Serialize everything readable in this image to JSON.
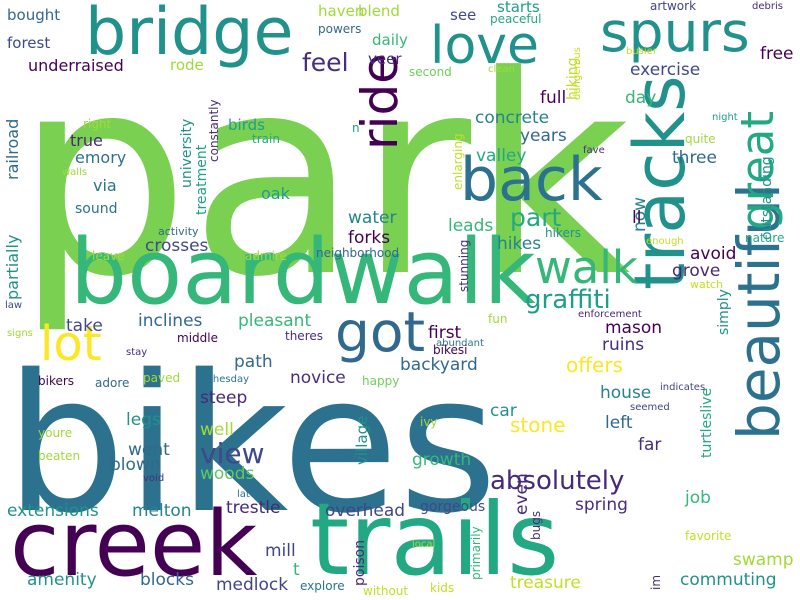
{
  "palette": [
    "#7ad151",
    "#23a884",
    "#2c728e",
    "#440154",
    "#3b528b",
    "#fde725",
    "#35b779",
    "#21918c",
    "#a0da39",
    "#472d7b",
    "#5ec962",
    "#31688e",
    "#482878",
    "#1f9e89",
    "#c2df23",
    "#414487",
    "#26828e",
    "#6ece58",
    "#3e4989"
  ],
  "words": [
    {
      "text": "park",
      "color": "#7ad151"
    },
    {
      "text": "bikes",
      "color": "#2c728e"
    },
    {
      "text": "trails",
      "color": "#23a884"
    },
    {
      "text": "creek",
      "color": "#440154"
    },
    {
      "text": "boardwalk",
      "color": "#35b779"
    },
    {
      "text": "bridge",
      "color": "#21918c"
    },
    {
      "text": "tracks",
      "color": "#21918c"
    },
    {
      "text": "beautiful",
      "color": "#2c728e"
    },
    {
      "text": "back",
      "color": "#2c728e"
    },
    {
      "text": "spurs",
      "color": "#21918c"
    },
    {
      "text": "love",
      "color": "#21918c"
    },
    {
      "text": "walk",
      "color": "#35b779"
    },
    {
      "text": "ride",
      "color": "#440154"
    },
    {
      "text": "great",
      "color": "#23a884"
    },
    {
      "text": "got",
      "color": "#31688e"
    },
    {
      "text": "lot",
      "color": "#fde725"
    },
    {
      "text": "absolutely",
      "color": "#482878"
    },
    {
      "text": "graffiti",
      "color": "#1f9e89"
    },
    {
      "text": "part",
      "color": "#23a884"
    },
    {
      "text": "feel",
      "color": "#472d7b"
    },
    {
      "text": "view",
      "color": "#3e4989"
    },
    {
      "text": "offers",
      "color": "#fde725"
    },
    {
      "text": "stone",
      "color": "#fde725"
    },
    {
      "text": "treasure",
      "color": "#c2df23"
    },
    {
      "text": "full",
      "color": "#440154"
    },
    {
      "text": "day",
      "color": "#35b779"
    },
    {
      "text": "avoid",
      "color": "#440154"
    },
    {
      "text": "ruins",
      "color": "#472d7b"
    },
    {
      "text": "mason",
      "color": "#440154"
    },
    {
      "text": "house",
      "color": "#26828e"
    },
    {
      "text": "backyard",
      "color": "#31688e"
    },
    {
      "text": "novice",
      "color": "#472d7b"
    },
    {
      "text": "pleasant",
      "color": "#35b779"
    },
    {
      "text": "inclines",
      "color": "#31688e"
    },
    {
      "text": "take",
      "color": "#3e4989"
    },
    {
      "text": "crosses",
      "color": "#3e4989"
    },
    {
      "text": "hikes",
      "color": "#26828e"
    },
    {
      "text": "forks",
      "color": "#440154"
    },
    {
      "text": "water",
      "color": "#26828e"
    },
    {
      "text": "leads",
      "color": "#35b779"
    },
    {
      "text": "concrete",
      "color": "#26828e"
    },
    {
      "text": "years",
      "color": "#31688e"
    },
    {
      "text": "valley",
      "color": "#23a884"
    },
    {
      "text": "three",
      "color": "#31688e"
    },
    {
      "text": "exercise",
      "color": "#3e4989"
    },
    {
      "text": "free",
      "color": "#440154"
    },
    {
      "text": "grove",
      "color": "#482878"
    },
    {
      "text": "now",
      "color": "#26828e"
    },
    {
      "text": "ll",
      "color": "#440154"
    },
    {
      "text": "first",
      "color": "#440154"
    },
    {
      "text": "path",
      "color": "#31688e"
    },
    {
      "text": "steep",
      "color": "#482878"
    },
    {
      "text": "well",
      "color": "#a0da39"
    },
    {
      "text": "went",
      "color": "#31688e"
    },
    {
      "text": "blown",
      "color": "#31688e"
    },
    {
      "text": "woods",
      "color": "#5ec962"
    },
    {
      "text": "legs",
      "color": "#21918c"
    },
    {
      "text": "car",
      "color": "#21918c"
    },
    {
      "text": "left",
      "color": "#31688e"
    },
    {
      "text": "far",
      "color": "#472d7b"
    },
    {
      "text": "growth",
      "color": "#35b779"
    },
    {
      "text": "spring",
      "color": "#472d7b"
    },
    {
      "text": "job",
      "color": "#35b779"
    },
    {
      "text": "swamp",
      "color": "#a0da39"
    },
    {
      "text": "commuting",
      "color": "#21918c"
    },
    {
      "text": "trestle",
      "color": "#482878"
    },
    {
      "text": "melton",
      "color": "#26828e"
    },
    {
      "text": "extensions",
      "color": "#21918c"
    },
    {
      "text": "overhead",
      "color": "#414487"
    },
    {
      "text": "gorgeous",
      "color": "#3e4989"
    },
    {
      "text": "even",
      "color": "#482878"
    },
    {
      "text": "favorite",
      "color": "#c2df23"
    },
    {
      "text": "mill",
      "color": "#414487"
    },
    {
      "text": "blocks",
      "color": "#31688e"
    },
    {
      "text": "medlock",
      "color": "#414487"
    },
    {
      "text": "amenity",
      "color": "#21918c"
    },
    {
      "text": "t",
      "color": "#35b779"
    },
    {
      "text": "haven",
      "color": "#a0da39"
    },
    {
      "text": "blend",
      "color": "#a0da39"
    },
    {
      "text": "see",
      "color": "#3e4989"
    },
    {
      "text": "starts",
      "color": "#1f9e89"
    },
    {
      "text": "daily",
      "color": "#35b779"
    },
    {
      "text": "veer",
      "color": "#472d7b"
    },
    {
      "text": "forest",
      "color": "#3e4989"
    },
    {
      "text": "bought",
      "color": "#31688e"
    },
    {
      "text": "underraised",
      "color": "#440154"
    },
    {
      "text": "rode",
      "color": "#a0da39"
    },
    {
      "text": "powers",
      "color": "#31688e"
    },
    {
      "text": "hiking",
      "color": "#c2df23"
    },
    {
      "text": "second",
      "color": "#6ece58"
    },
    {
      "text": "clean",
      "color": "#a0da39"
    },
    {
      "text": "peaceful",
      "color": "#23a884"
    },
    {
      "text": "dangerous",
      "color": "#c2df23"
    },
    {
      "text": "busier",
      "color": "#c2df23"
    },
    {
      "text": "artwork",
      "color": "#414487"
    },
    {
      "text": "debris",
      "color": "#482878"
    },
    {
      "text": "night",
      "color": "#1f9e89"
    },
    {
      "text": "quite",
      "color": "#a0da39"
    },
    {
      "text": "fave",
      "color": "#472d7b"
    },
    {
      "text": "outstanding",
      "color": "#21918c"
    },
    {
      "text": "nature",
      "color": "#23a884"
    },
    {
      "text": "enough",
      "color": "#c2df23"
    },
    {
      "text": "watch",
      "color": "#c2df23"
    },
    {
      "text": "railroad",
      "color": "#31688e"
    },
    {
      "text": "partially",
      "color": "#21918c"
    },
    {
      "text": "right",
      "color": "#a0da39"
    },
    {
      "text": "emory",
      "color": "#2c728e"
    },
    {
      "text": "true",
      "color": "#482878"
    },
    {
      "text": "via",
      "color": "#2c728e"
    },
    {
      "text": "sound",
      "color": "#2c728e"
    },
    {
      "text": "walls",
      "color": "#a0da39"
    },
    {
      "text": "university",
      "color": "#21918c"
    },
    {
      "text": "treatment",
      "color": "#1f9e89"
    },
    {
      "text": "constantly",
      "color": "#472d7b"
    },
    {
      "text": "birds",
      "color": "#1f9e89"
    },
    {
      "text": "train",
      "color": "#23a884"
    },
    {
      "text": "oak",
      "color": "#1f9e89"
    },
    {
      "text": "n",
      "color": "#1f9e89"
    },
    {
      "text": "enlarging",
      "color": "#c2df23"
    },
    {
      "text": "stunning",
      "color": "#472d7b"
    },
    {
      "text": "hikers",
      "color": "#21918c"
    },
    {
      "text": "activity",
      "color": "#31688e"
    },
    {
      "text": "leave",
      "color": "#a0da39"
    },
    {
      "text": "admire",
      "color": "#a0da39"
    },
    {
      "text": "neighborhood",
      "color": "#31688e"
    },
    {
      "text": "law",
      "color": "#3e4989"
    },
    {
      "text": "signs",
      "color": "#a0da39"
    },
    {
      "text": "middle",
      "color": "#440154"
    },
    {
      "text": "theres",
      "color": "#472d7b"
    },
    {
      "text": "stay",
      "color": "#472d7b"
    },
    {
      "text": "abundant",
      "color": "#2c728e"
    },
    {
      "text": "fun",
      "color": "#a0da39"
    },
    {
      "text": "bikesi",
      "color": "#440154"
    },
    {
      "text": "enforcement",
      "color": "#482878"
    },
    {
      "text": "simply",
      "color": "#21918c"
    },
    {
      "text": "turtleslive",
      "color": "#23a884"
    },
    {
      "text": "bikers",
      "color": "#440154"
    },
    {
      "text": "adore",
      "color": "#31688e"
    },
    {
      "text": "paved",
      "color": "#a0da39"
    },
    {
      "text": "bushesday",
      "color": "#2c728e"
    },
    {
      "text": "happy",
      "color": "#6ece58"
    },
    {
      "text": "indicates",
      "color": "#414487"
    },
    {
      "text": "seemed",
      "color": "#414487"
    },
    {
      "text": "village",
      "color": "#21918c"
    },
    {
      "text": "ivy",
      "color": "#a0da39"
    },
    {
      "text": "youre",
      "color": "#a0da39"
    },
    {
      "text": "beaten",
      "color": "#a0da39"
    },
    {
      "text": "void",
      "color": "#472d7b"
    },
    {
      "text": "late",
      "color": "#2c728e"
    },
    {
      "text": "bugs",
      "color": "#472d7b"
    },
    {
      "text": "poison",
      "color": "#482878"
    },
    {
      "text": "primarily",
      "color": "#35b779"
    },
    {
      "text": "local",
      "color": "#a0da39"
    },
    {
      "text": "explore",
      "color": "#2c728e"
    },
    {
      "text": "without",
      "color": "#c2df23"
    },
    {
      "text": "kids",
      "color": "#c2df23"
    },
    {
      "text": "im",
      "color": "#472d7b"
    }
  ]
}
